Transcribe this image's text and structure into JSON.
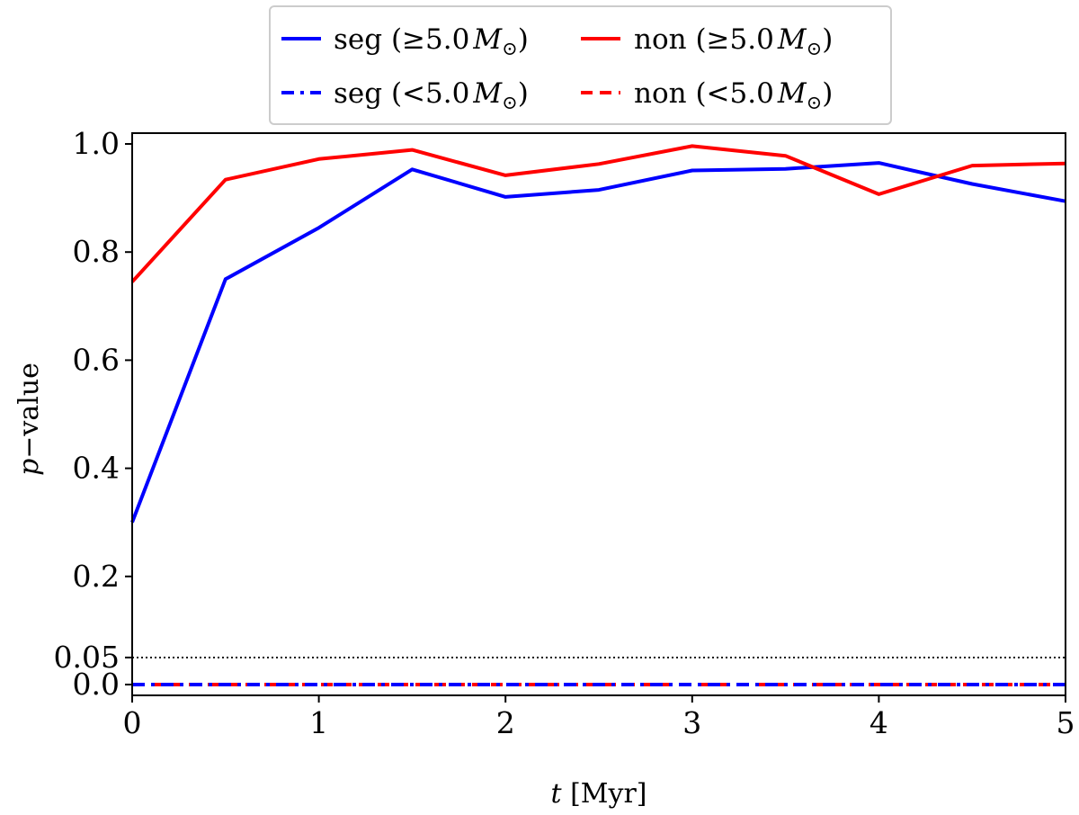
{
  "chart_data": {
    "type": "line",
    "xlabel": {
      "var": "t",
      "unit": "[Myr]"
    },
    "ylabel": {
      "var": "p",
      "rest": "−value"
    },
    "xlim": [
      0,
      5
    ],
    "ylim": [
      -0.02,
      1.02
    ],
    "xticks": [
      {
        "value": 0,
        "label": "0"
      },
      {
        "value": 1,
        "label": "1"
      },
      {
        "value": 2,
        "label": "2"
      },
      {
        "value": 3,
        "label": "3"
      },
      {
        "value": 4,
        "label": "4"
      },
      {
        "value": 5,
        "label": "5"
      }
    ],
    "yticks": [
      {
        "value": 0.0,
        "label": "0.0"
      },
      {
        "value": 0.05,
        "label": "0.05"
      },
      {
        "value": 0.2,
        "label": "0.2"
      },
      {
        "value": 0.4,
        "label": "0.4"
      },
      {
        "value": 0.6,
        "label": "0.6"
      },
      {
        "value": 0.8,
        "label": "0.8"
      },
      {
        "value": 1.0,
        "label": "1.0"
      }
    ],
    "threshold": {
      "value": 0.05,
      "style": "dotted",
      "color": "#000000"
    },
    "x": [
      0,
      0.5,
      1,
      1.5,
      2,
      2.5,
      3,
      3.5,
      4,
      4.5,
      5
    ],
    "series": [
      {
        "name": "seg (≥5.0M⊙)",
        "label": "seg",
        "cmp": "≥",
        "color": "#0000ff",
        "dash": "solid",
        "values": [
          0.3,
          0.75,
          0.845,
          0.953,
          0.902,
          0.915,
          0.951,
          0.954,
          0.965,
          0.926,
          0.894
        ]
      },
      {
        "name": "non (≥5.0M⊙)",
        "label": "non",
        "cmp": "≥",
        "color": "#ff0000",
        "dash": "solid",
        "values": [
          0.745,
          0.934,
          0.972,
          0.989,
          0.942,
          0.963,
          0.996,
          0.978,
          0.907,
          0.96,
          0.964
        ]
      },
      {
        "name": "seg (<5.0M⊙)",
        "label": "seg",
        "cmp": "<",
        "color": "#0000ff",
        "dash": "dashdot",
        "values": [
          0.0,
          0.0,
          0.0,
          0.0,
          0.0,
          0.0,
          0.0,
          0.0,
          0.0,
          0.0,
          0.0
        ]
      },
      {
        "name": "non (<5.0M⊙)",
        "label": "non",
        "cmp": "<",
        "color": "#ff0000",
        "dash": "dashed",
        "values": [
          0.0,
          0.0,
          0.0,
          0.0,
          0.0,
          0.0,
          0.0,
          0.0,
          0.0,
          0.0,
          0.0
        ]
      }
    ],
    "legend": {
      "placement": "top-center",
      "columns": 2,
      "mass": "5.0",
      "symbol": "M",
      "sub": "⊙"
    },
    "grid": false
  }
}
